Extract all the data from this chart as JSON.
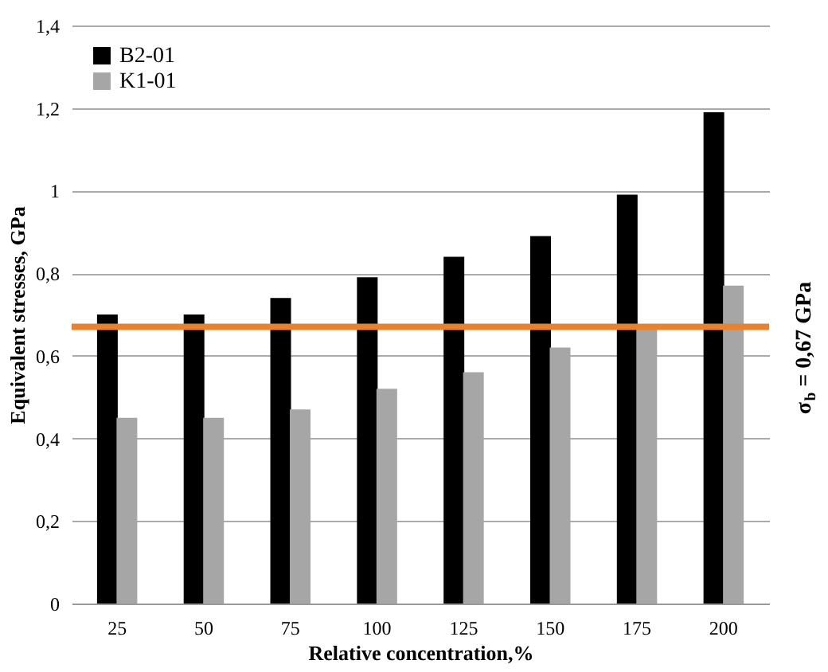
{
  "chart_data": {
    "type": "bar",
    "xlabel": "Relative concentration,%",
    "ylabel": "Equivalent stresses, GPa",
    "categories": [
      "25",
      "50",
      "75",
      "100",
      "125",
      "150",
      "175",
      "200"
    ],
    "series": [
      {
        "name": "B2-01",
        "color": "#000000",
        "values": [
          0.7,
          0.7,
          0.74,
          0.79,
          0.84,
          0.89,
          0.99,
          1.19
        ]
      },
      {
        "name": "K1-01",
        "color": "#a6a6a6",
        "values": [
          0.45,
          0.45,
          0.47,
          0.52,
          0.56,
          0.62,
          0.67,
          0.77
        ]
      }
    ],
    "ylim": [
      0,
      1.4
    ],
    "yticks": [
      0,
      {
        "value": 0.2,
        "label": "0,2"
      },
      {
        "value": 0.4,
        "label": "0,4"
      },
      {
        "value": 0.6,
        "label": "0,6"
      },
      {
        "value": 0.8,
        "label": "0,8"
      },
      1,
      {
        "value": 1.2,
        "label": "1,2"
      },
      {
        "value": 1.4,
        "label": "1,4"
      }
    ],
    "ref_lines": [
      {
        "axis": "y",
        "value": 0.67,
        "label": "σ$_{b}$ = 0,67 GPa",
        "color": "#e8822f"
      }
    ],
    "grid": "y",
    "legend": "top left"
  }
}
